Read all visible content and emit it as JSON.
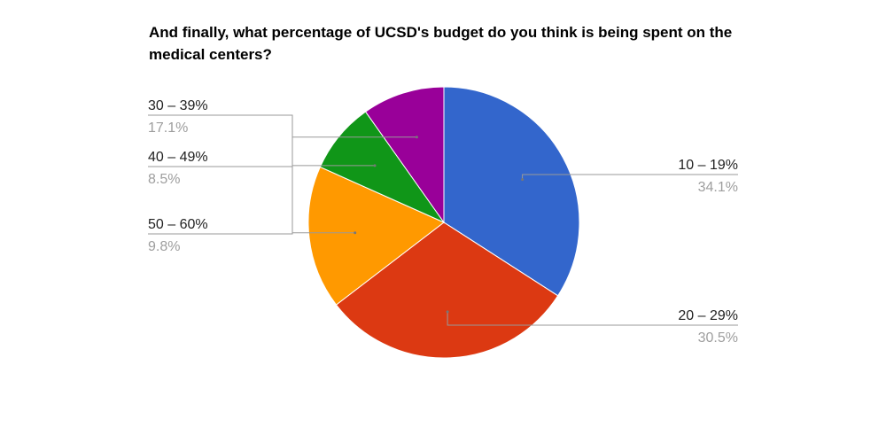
{
  "chart_data": {
    "type": "pie",
    "title": "And finally, what percentage of UCSD's budget do you think is being spent on the medical centers?",
    "slices": [
      {
        "label": "10 – 19%",
        "value": 34.1,
        "value_label": "34.1%",
        "color": "#3366cc",
        "label_side": "right"
      },
      {
        "label": "20 – 29%",
        "value": 30.5,
        "value_label": "30.5%",
        "color": "#dc3912",
        "label_side": "right"
      },
      {
        "label": "30 – 39%",
        "value": 17.1,
        "value_label": "17.1%",
        "color": "#ff9900",
        "label_side": "left"
      },
      {
        "label": "40 – 49%",
        "value": 8.5,
        "value_label": "8.5%",
        "color": "#109618",
        "label_side": "left"
      },
      {
        "label": "50 – 60%",
        "value": 9.8,
        "value_label": "9.8%",
        "color": "#990099",
        "label_side": "left"
      }
    ],
    "start_angle": "12 o'clock",
    "direction": "clockwise",
    "legend": "labeled slices"
  }
}
